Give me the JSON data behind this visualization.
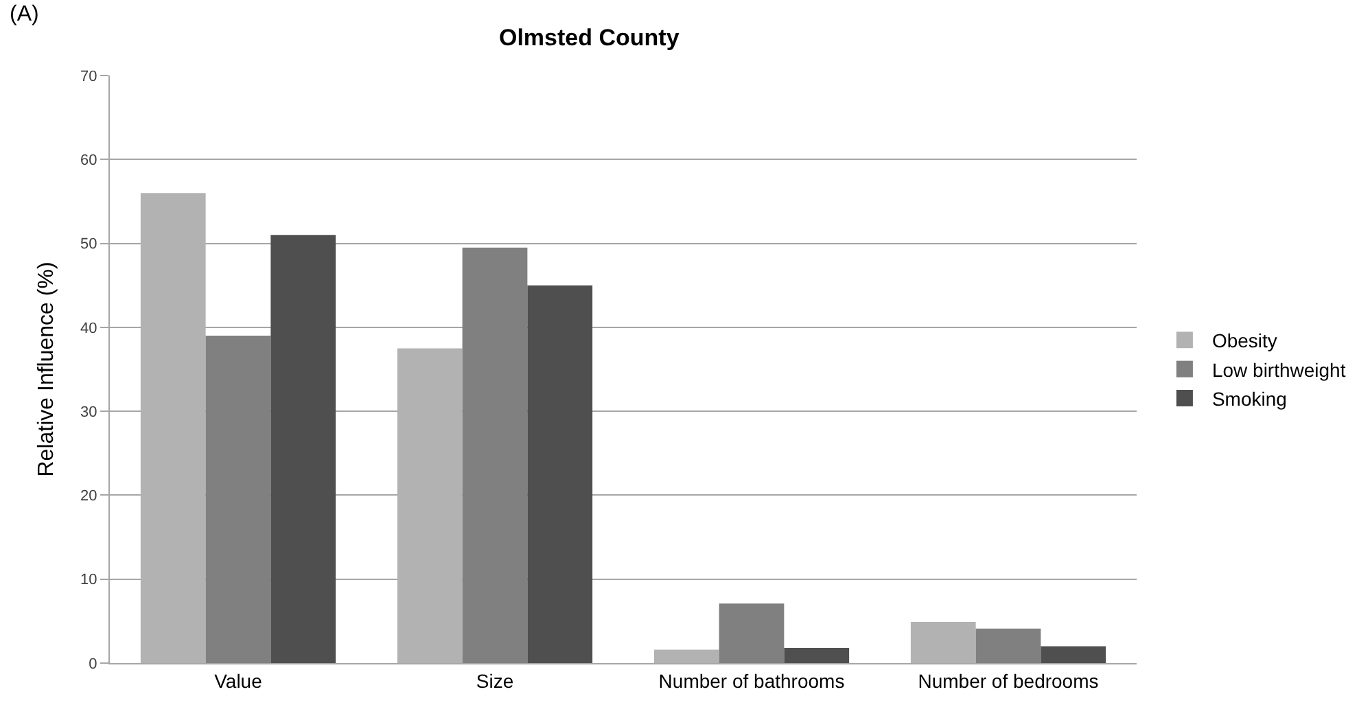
{
  "chart_data": {
    "type": "bar",
    "title": "Olmsted County",
    "ylabel": "Relative Influence (%)",
    "annotations": [
      "(A)"
    ],
    "categories": [
      "Value",
      "Size",
      "Number of bathrooms",
      "Number of bedrooms"
    ],
    "series": [
      {
        "name": "Obesity",
        "color": "#b2b2b2",
        "values": [
          56,
          37.5,
          1.6,
          4.9
        ]
      },
      {
        "name": "Low birthweight",
        "color": "#808080",
        "values": [
          39,
          49.5,
          7.1,
          4.1
        ]
      },
      {
        "name": "Smoking",
        "color": "#4f4f4f",
        "values": [
          51,
          45,
          1.8,
          2.0
        ]
      }
    ],
    "ylim": [
      0,
      70
    ],
    "yticks": [
      0,
      10,
      20,
      30,
      40,
      50,
      60,
      70
    ],
    "grid": "y",
    "legend": "right"
  }
}
